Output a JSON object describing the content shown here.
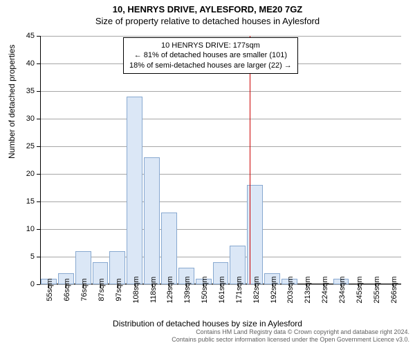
{
  "title": "10, HENRYS DRIVE, AYLESFORD, ME20 7GZ",
  "subtitle": "Size of property relative to detached houses in Aylesford",
  "chart": {
    "type": "histogram",
    "ylabel": "Number of detached properties",
    "xlabel": "Distribution of detached houses by size in Aylesford",
    "ylim": [
      0,
      45
    ],
    "yticks": [
      0,
      5,
      10,
      15,
      20,
      25,
      30,
      35,
      40,
      45
    ],
    "xticks": [
      "55sqm",
      "66sqm",
      "76sqm",
      "87sqm",
      "97sqm",
      "108sqm",
      "118sqm",
      "129sqm",
      "139sqm",
      "150sqm",
      "161sqm",
      "171sqm",
      "182sqm",
      "192sqm",
      "203sqm",
      "213sqm",
      "224sqm",
      "234sqm",
      "245sqm",
      "255sqm",
      "266sqm"
    ],
    "values": [
      1,
      2,
      6,
      4,
      6,
      34,
      23,
      13,
      3,
      1,
      4,
      7,
      18,
      2,
      1,
      0,
      0,
      1,
      0,
      0,
      0
    ],
    "bar_color": "#dbe7f6",
    "bar_border": "#87a8d0",
    "grid_color": "#000000",
    "background_color": "#ffffff",
    "reference_line_x_index": 11.7,
    "reference_line_color": "#cc0000",
    "axis_fontsize": 11,
    "label_fontsize": 12,
    "title_fontsize": 13
  },
  "annotation": {
    "line1": "10 HENRYS DRIVE: 177sqm",
    "line2": "← 81% of detached houses are smaller (101)",
    "line3": "18% of semi-detached houses are larger (22) →"
  },
  "footer": {
    "line1": "Contains HM Land Registry data © Crown copyright and database right 2024.",
    "line2": "Contains public sector information licensed under the Open Government Licence v3.0."
  }
}
